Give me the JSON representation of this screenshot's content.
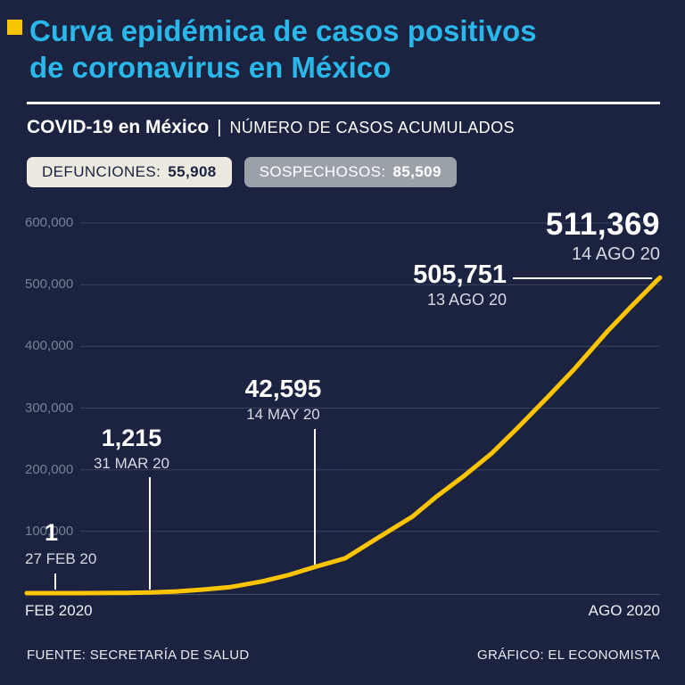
{
  "header": {
    "accent_color": "#F6C500",
    "title_color": "#2AB7EA",
    "title_lines": [
      "Curva epidémica de casos positivos",
      "de coronavirus en México"
    ]
  },
  "subheader": {
    "title": "COVID-19 en México",
    "separator": "|",
    "subtitle": "NÚMERO DE CASOS ACUMULADOS"
  },
  "badges": [
    {
      "label": "DEFUNCIONES:",
      "value": "55,908"
    },
    {
      "label": "SOSPECHOSOS:",
      "value": "85,509"
    }
  ],
  "chart_data": {
    "type": "line",
    "title": "COVID-19 en México | Número de casos acumulados",
    "series": [
      {
        "name": "Casos positivos acumulados",
        "color": "#FDC400",
        "points": [
          [
            0,
            1
          ],
          [
            7,
            5
          ],
          [
            14,
            26
          ],
          [
            20,
            118
          ],
          [
            26,
            475
          ],
          [
            33,
            1215
          ],
          [
            40,
            2785
          ],
          [
            47,
            5847
          ],
          [
            54,
            9501
          ],
          [
            63,
            19224
          ],
          [
            70,
            29616
          ],
          [
            77,
            42595
          ],
          [
            85,
            56594
          ],
          [
            94,
            90664
          ],
          [
            103,
            124301
          ],
          [
            109,
            154863
          ],
          [
            117,
            191410
          ],
          [
            124,
            226089
          ],
          [
            131,
            268008
          ],
          [
            139,
            317635
          ],
          [
            146,
            362274
          ],
          [
            155,
            424637
          ],
          [
            161,
            462690
          ],
          [
            168,
            505751
          ],
          [
            169,
            511369
          ]
        ]
      }
    ],
    "x_range_days": 169,
    "x_axis_labels": [
      "FEB 2020",
      "AGO 2020"
    ],
    "ylim": [
      0,
      600000
    ],
    "grid": true,
    "yticks": [
      {
        "value": 100000,
        "label": "100,000"
      },
      {
        "value": 200000,
        "label": "200,000"
      },
      {
        "value": 300000,
        "label": "300,000"
      },
      {
        "value": 400000,
        "label": "400,000"
      },
      {
        "value": 500000,
        "label": "500,000"
      },
      {
        "value": 600000,
        "label": "600,000"
      }
    ],
    "annotations": [
      {
        "value": 1,
        "value_label": "1",
        "date": "27 FEB 20",
        "day": 0
      },
      {
        "value": 1215,
        "value_label": "1,215",
        "date": "31 MAR 20",
        "day": 33
      },
      {
        "value": 42595,
        "value_label": "42,595",
        "date": "14 MAY 20",
        "day": 77
      },
      {
        "value": 505751,
        "value_label": "505,751",
        "date": "13 AGO 20",
        "day": 168
      },
      {
        "value": 511369,
        "value_label": "511,369",
        "date": "14 AGO 20",
        "day": 169
      }
    ]
  },
  "footer": {
    "source": "FUENTE: SECRETARÍA DE SALUD",
    "credit": "GRÁFICO: EL ECONOMISTA"
  }
}
